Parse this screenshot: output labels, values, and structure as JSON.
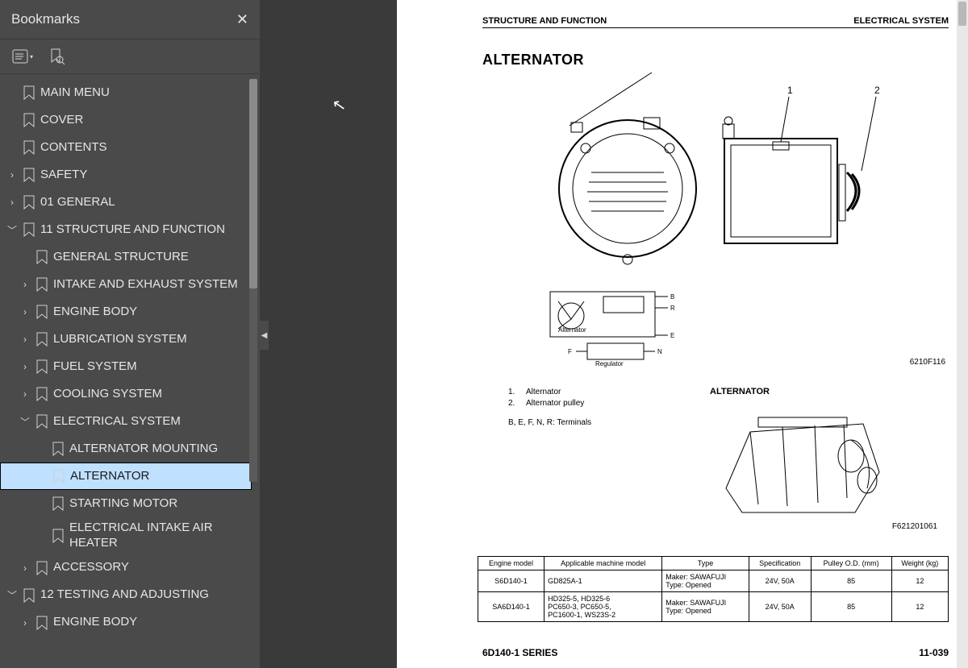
{
  "sidebar": {
    "title": "Bookmarks",
    "items": [
      {
        "label": "MAIN MENU",
        "indent": 0,
        "chev": "",
        "sel": false
      },
      {
        "label": "COVER",
        "indent": 0,
        "chev": "",
        "sel": false
      },
      {
        "label": "CONTENTS",
        "indent": 0,
        "chev": "",
        "sel": false
      },
      {
        "label": "SAFETY",
        "indent": 0,
        "chev": ">",
        "sel": false
      },
      {
        "label": "01 GENERAL",
        "indent": 0,
        "chev": ">",
        "sel": false
      },
      {
        "label": "11 STRUCTURE AND FUNCTION",
        "indent": 0,
        "chev": "v",
        "sel": false
      },
      {
        "label": "GENERAL STRUCTURE",
        "indent": 1,
        "chev": "",
        "sel": false
      },
      {
        "label": "INTAKE AND EXHAUST SYSTEM",
        "indent": 1,
        "chev": ">",
        "sel": false
      },
      {
        "label": "ENGINE BODY",
        "indent": 1,
        "chev": ">",
        "sel": false
      },
      {
        "label": "LUBRICATION SYSTEM",
        "indent": 1,
        "chev": ">",
        "sel": false
      },
      {
        "label": "FUEL SYSTEM",
        "indent": 1,
        "chev": ">",
        "sel": false
      },
      {
        "label": "COOLING SYSTEM",
        "indent": 1,
        "chev": ">",
        "sel": false
      },
      {
        "label": "ELECTRICAL SYSTEM",
        "indent": 1,
        "chev": "v",
        "sel": false
      },
      {
        "label": "ALTERNATOR MOUNTING",
        "indent": 2,
        "chev": "",
        "sel": false
      },
      {
        "label": "ALTERNATOR",
        "indent": 2,
        "chev": "",
        "sel": true
      },
      {
        "label": "STARTING MOTOR",
        "indent": 2,
        "chev": "",
        "sel": false
      },
      {
        "label": "ELECTRICAL INTAKE AIR HEATER",
        "indent": 2,
        "chev": "",
        "sel": false
      },
      {
        "label": "ACCESSORY",
        "indent": 1,
        "chev": ">",
        "sel": false
      },
      {
        "label": "12 TESTING AND ADJUSTING",
        "indent": 0,
        "chev": "v",
        "sel": false
      },
      {
        "label": "ENGINE BODY",
        "indent": 1,
        "chev": ">",
        "sel": false
      }
    ]
  },
  "page": {
    "header_left": "STRUCTURE AND FUNCTION",
    "header_right": "ELECTRICAL SYSTEM",
    "title": "ALTERNATOR",
    "fig_ref_main": "6210F116",
    "legend": {
      "items": [
        {
          "n": "1.",
          "t": "Alternator"
        },
        {
          "n": "2.",
          "t": "Alternator pulley"
        }
      ],
      "terminals": "B, E, F, N, R: Terminals"
    },
    "subfig_title": "ALTERNATOR",
    "fig_ref_engine": "F621201061",
    "schematic": {
      "label_alt": "Alternator",
      "label_reg": "Regulator",
      "pins": [
        "B",
        "R",
        "E",
        "F",
        "N"
      ]
    },
    "table": {
      "headers": [
        "Engine model",
        "Applicable machine model",
        "Type",
        "Specification",
        "Pulley O.D. (mm)",
        "Weight (kg)"
      ],
      "rows": [
        {
          "engine": "S6D140-1",
          "machine": "GD825A-1",
          "type": "Maker: SAWAFUJI\nType:   Opened",
          "spec": "24V, 50A",
          "pulley": "85",
          "weight": "12"
        },
        {
          "engine": "SA6D140-1",
          "machine": "HD325-5, HD325-6\nPC650-3, PC650-5,\nPC1600-1, WS23S-2",
          "type": "Maker: SAWAFUJI\nType:   Opened",
          "spec": "24V, 50A",
          "pulley": "85",
          "weight": "12"
        }
      ]
    },
    "footer_left": "6D140-1 SERIES",
    "footer_right": "11-039"
  },
  "callouts": {
    "c1": "1",
    "c2": "2"
  }
}
